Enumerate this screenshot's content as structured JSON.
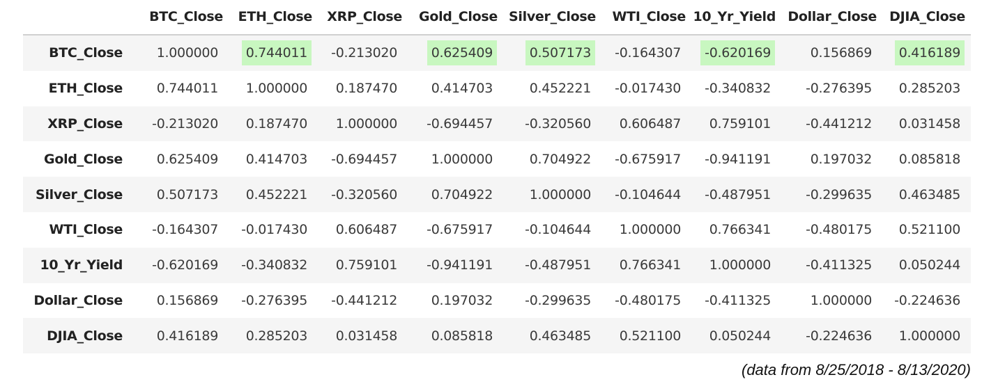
{
  "table": {
    "index_header": "",
    "columns": [
      "BTC_Close",
      "ETH_Close",
      "XRP_Close",
      "Gold_Close",
      "Silver_Close",
      "WTI_Close",
      "10_Yr_Yield",
      "Dollar_Close",
      "DJIA_Close"
    ],
    "rows": [
      {
        "label": "BTC_Close",
        "values": [
          "1.000000",
          "0.744011",
          "-0.213020",
          "0.625409",
          "0.507173",
          "-0.164307",
          "-0.620169",
          "0.156869",
          "0.416189"
        ],
        "highlight": [
          false,
          true,
          false,
          true,
          true,
          false,
          true,
          false,
          true
        ]
      },
      {
        "label": "ETH_Close",
        "values": [
          "0.744011",
          "1.000000",
          "0.187470",
          "0.414703",
          "0.452221",
          "-0.017430",
          "-0.340832",
          "-0.276395",
          "0.285203"
        ],
        "highlight": [
          false,
          false,
          false,
          false,
          false,
          false,
          false,
          false,
          false
        ]
      },
      {
        "label": "XRP_Close",
        "values": [
          "-0.213020",
          "0.187470",
          "1.000000",
          "-0.694457",
          "-0.320560",
          "0.606487",
          "0.759101",
          "-0.441212",
          "0.031458"
        ],
        "highlight": [
          false,
          false,
          false,
          false,
          false,
          false,
          false,
          false,
          false
        ]
      },
      {
        "label": "Gold_Close",
        "values": [
          "0.625409",
          "0.414703",
          "-0.694457",
          "1.000000",
          "0.704922",
          "-0.675917",
          "-0.941191",
          "0.197032",
          "0.085818"
        ],
        "highlight": [
          false,
          false,
          false,
          false,
          false,
          false,
          false,
          false,
          false
        ]
      },
      {
        "label": "Silver_Close",
        "values": [
          "0.507173",
          "0.452221",
          "-0.320560",
          "0.704922",
          "1.000000",
          "-0.104644",
          "-0.487951",
          "-0.299635",
          "0.463485"
        ],
        "highlight": [
          false,
          false,
          false,
          false,
          false,
          false,
          false,
          false,
          false
        ]
      },
      {
        "label": "WTI_Close",
        "values": [
          "-0.164307",
          "-0.017430",
          "0.606487",
          "-0.675917",
          "-0.104644",
          "1.000000",
          "0.766341",
          "-0.480175",
          "0.521100"
        ],
        "highlight": [
          false,
          false,
          false,
          false,
          false,
          false,
          false,
          false,
          false
        ]
      },
      {
        "label": "10_Yr_Yield",
        "values": [
          "-0.620169",
          "-0.340832",
          "0.759101",
          "-0.941191",
          "-0.487951",
          "0.766341",
          "1.000000",
          "-0.411325",
          "0.050244"
        ],
        "highlight": [
          false,
          false,
          false,
          false,
          false,
          false,
          false,
          false,
          false
        ]
      },
      {
        "label": "Dollar_Close",
        "values": [
          "0.156869",
          "-0.276395",
          "-0.441212",
          "0.197032",
          "-0.299635",
          "-0.480175",
          "-0.411325",
          "1.000000",
          "-0.224636"
        ],
        "highlight": [
          false,
          false,
          false,
          false,
          false,
          false,
          false,
          false,
          false
        ]
      },
      {
        "label": "DJIA_Close",
        "values": [
          "0.416189",
          "0.285203",
          "0.031458",
          "0.085818",
          "0.463485",
          "0.521100",
          "0.050244",
          "-0.224636",
          "1.000000"
        ],
        "highlight": [
          false,
          false,
          false,
          false,
          false,
          false,
          false,
          false,
          false
        ]
      }
    ]
  },
  "caption": "(data from 8/25/2018 - 8/13/2020)",
  "colors": {
    "highlight": "#c8f7c0",
    "stripe": "#f5f5f5",
    "header_rule": "#d0d0d0"
  }
}
